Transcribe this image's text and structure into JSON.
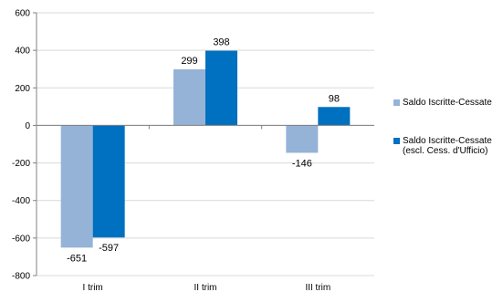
{
  "chart_data": {
    "type": "bar",
    "categories": [
      "I trim",
      "II trim",
      "III trim"
    ],
    "series": [
      {
        "name": "Saldo Iscritte-Cessate",
        "values": [
          -651,
          299,
          -146
        ],
        "color": "#95b3d7"
      },
      {
        "name": "Saldo Iscritte-Cessate (escl. Cess. d'Ufficio)",
        "values": [
          -597,
          398,
          98
        ],
        "color": "#0070c0"
      }
    ],
    "legend": [
      {
        "line1": "Saldo Iscritte-Cessate",
        "line2": ""
      },
      {
        "line1": "Saldo Iscritte-Cessate",
        "line2": "(escl. Cess. d'Ufficio)"
      }
    ],
    "yticks": [
      "600",
      "400",
      "200",
      "0",
      "-200",
      "-400",
      "-600",
      "-800"
    ],
    "ylim": [
      -800,
      600
    ],
    "title": "",
    "xlabel": "",
    "ylabel": "",
    "grid": true,
    "legend_position": "right"
  }
}
